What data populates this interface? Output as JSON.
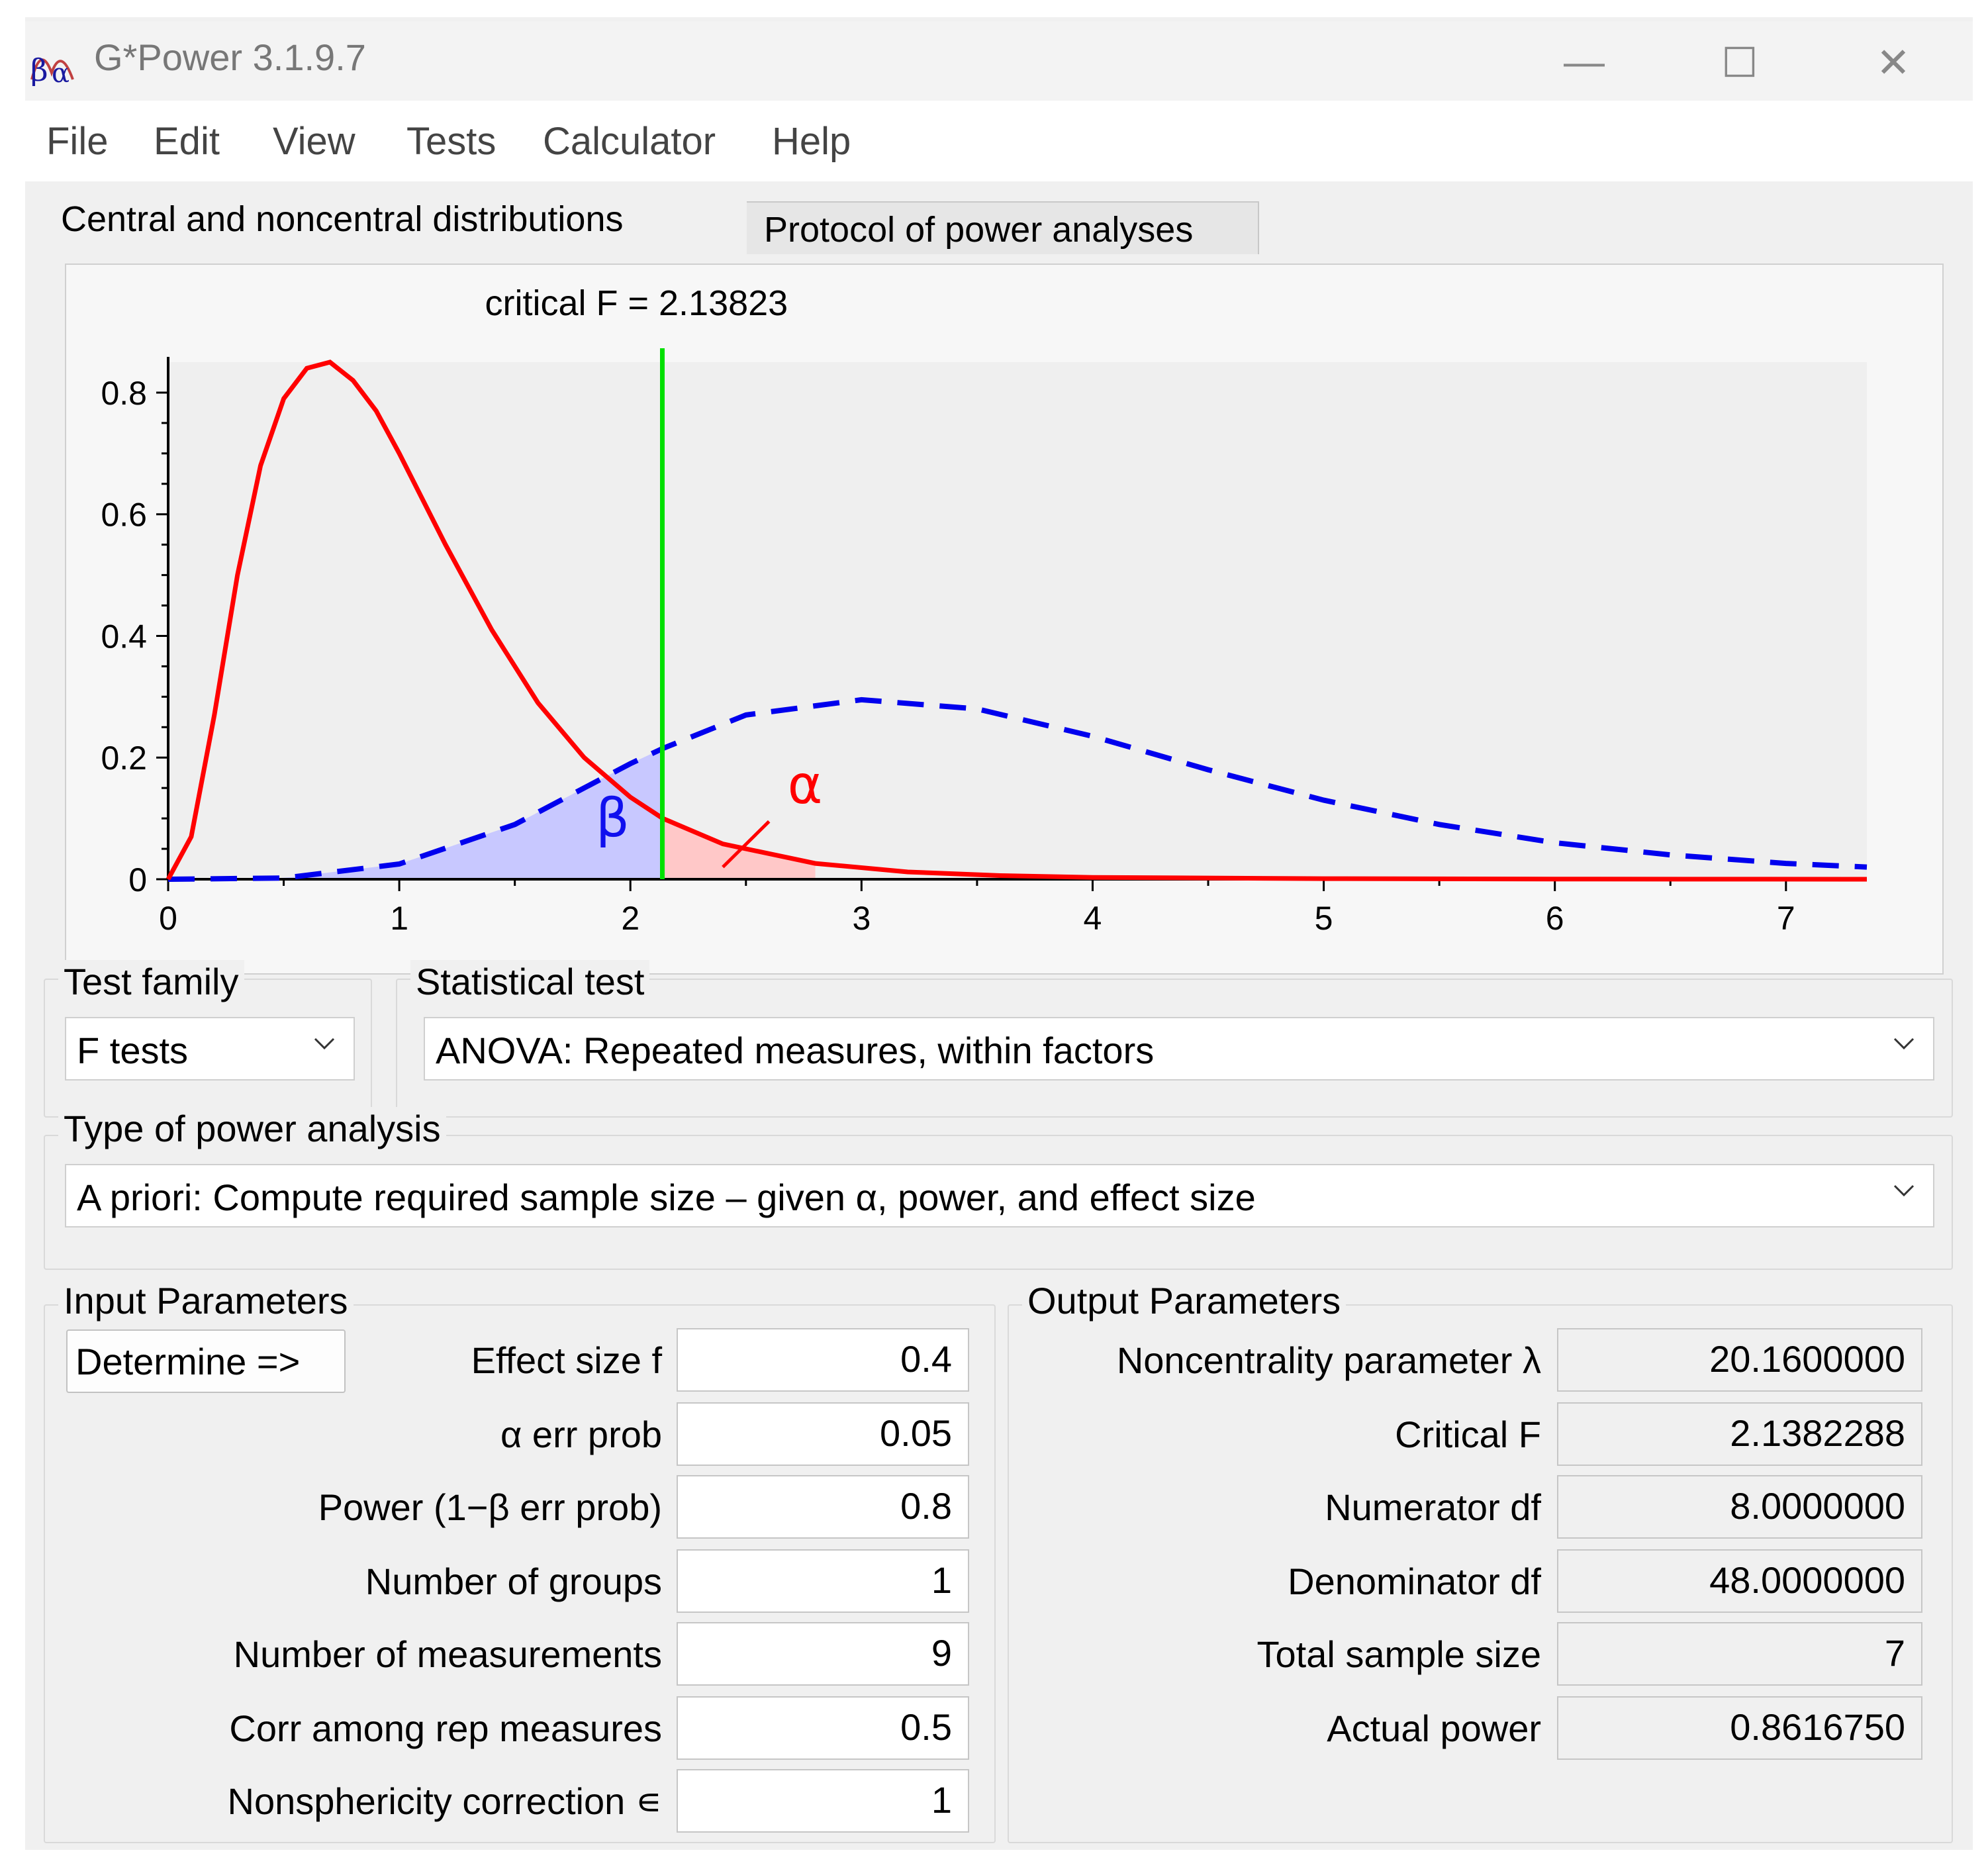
{
  "window": {
    "title": "G*Power 3.1.9.7",
    "controls": {
      "minimize": "—",
      "maximize": "☐",
      "close": "✕"
    }
  },
  "menu": {
    "items": [
      "File",
      "Edit",
      "View",
      "Tests",
      "Calculator",
      "Help"
    ]
  },
  "tabs": {
    "items": [
      "Central and noncentral distributions",
      "Protocol of power analyses"
    ],
    "active": 0
  },
  "chart_data": {
    "type": "line",
    "annotation": "critical F = 2.13823",
    "critical_value": 2.13823,
    "xlim": [
      0,
      7.35
    ],
    "ylim": [
      0,
      0.85
    ],
    "xticks": [
      "0",
      "1",
      "2",
      "3",
      "4",
      "5",
      "6",
      "7"
    ],
    "yticks": [
      "0",
      "0.2",
      "0.4",
      "0.6",
      "0.8"
    ],
    "grid": false,
    "symbols": {
      "alpha": "α",
      "beta": "β"
    },
    "colors": {
      "central": "#ff0000",
      "noncentral": "#0000ee",
      "critical": "#00e000",
      "beta_fill": "#c8c8ff",
      "alpha_fill": "#ffc8c8",
      "plot_bg": "#efefef"
    },
    "series": [
      {
        "style": "solid",
        "x": [
          0,
          0.1,
          0.2,
          0.3,
          0.4,
          0.5,
          0.6,
          0.7,
          0.8,
          0.9,
          1.0,
          1.2,
          1.4,
          1.6,
          1.8,
          2.0,
          2.14,
          2.4,
          2.8,
          3.2,
          3.6,
          4.0,
          5.0,
          6.0,
          7.35
        ],
        "y": [
          0,
          0.07,
          0.27,
          0.5,
          0.68,
          0.79,
          0.84,
          0.85,
          0.82,
          0.77,
          0.7,
          0.55,
          0.41,
          0.29,
          0.2,
          0.135,
          0.1,
          0.058,
          0.026,
          0.012,
          0.006,
          0.003,
          0.001,
          0.0003,
          0
        ]
      },
      {
        "style": "dashed",
        "x": [
          0,
          0.5,
          1.0,
          1.5,
          2.0,
          2.14,
          2.5,
          3.0,
          3.5,
          4.0,
          4.5,
          5.0,
          5.5,
          6.0,
          6.5,
          7.0,
          7.35
        ],
        "y": [
          0,
          0.002,
          0.025,
          0.09,
          0.19,
          0.215,
          0.27,
          0.295,
          0.28,
          0.235,
          0.18,
          0.13,
          0.09,
          0.06,
          0.04,
          0.026,
          0.02
        ]
      }
    ]
  },
  "test_family": {
    "label": "Test family",
    "value": "F tests"
  },
  "statistical_test": {
    "label": "Statistical test",
    "value": "ANOVA: Repeated measures, within factors"
  },
  "power_analysis_type": {
    "label": "Type of power analysis",
    "value": "A priori: Compute required sample size – given α, power, and effect size"
  },
  "input": {
    "title": "Input Parameters",
    "determine_label": "Determine =>",
    "params": [
      {
        "label": "Effect size f",
        "value": "0.4"
      },
      {
        "label": "α err prob",
        "value": "0.05"
      },
      {
        "label": "Power (1−β err prob)",
        "value": "0.8"
      },
      {
        "label": "Number of groups",
        "value": "1"
      },
      {
        "label": "Number of measurements",
        "value": "9"
      },
      {
        "label": "Corr among rep measures",
        "value": "0.5"
      },
      {
        "label": "Nonsphericity correction ∊",
        "value": "1"
      }
    ]
  },
  "output": {
    "title": "Output Parameters",
    "params": [
      {
        "label": "Noncentrality parameter λ",
        "value": "20.1600000"
      },
      {
        "label": "Critical F",
        "value": "2.1382288"
      },
      {
        "label": "Numerator df",
        "value": "8.0000000"
      },
      {
        "label": "Denominator df",
        "value": "48.0000000"
      },
      {
        "label": "Total sample size",
        "value": "7"
      },
      {
        "label": "Actual power",
        "value": "0.8616750"
      }
    ]
  }
}
